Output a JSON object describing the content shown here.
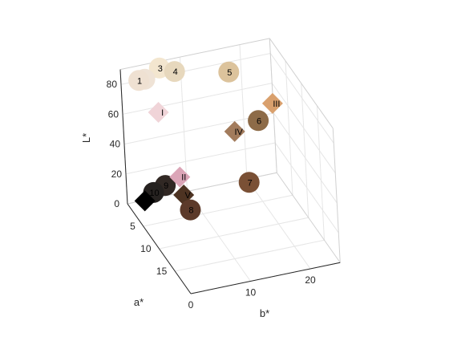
{
  "chart_data": {
    "type": "scatter3d",
    "title": "",
    "xlabel": "a*",
    "ylabel": "b*",
    "zlabel": "L*",
    "xlim": [
      0,
      20
    ],
    "ylim": [
      0,
      25
    ],
    "zlim": [
      0,
      90
    ],
    "xticks": [
      0,
      5,
      10,
      15
    ],
    "yticks": [
      0,
      10,
      20
    ],
    "zticks": [
      20,
      40,
      60,
      80
    ],
    "grid": true,
    "view": {
      "azimuth": -20,
      "elevation": 50
    },
    "points": [
      {
        "label": "1",
        "marker": "circle",
        "color": "#efe1d2",
        "a": 2,
        "b": 2,
        "L": 87
      },
      {
        "label": "2",
        "marker": "circle",
        "color": "#efe3d6",
        "a": 2,
        "b": 3,
        "L": 87
      },
      {
        "label": "3",
        "marker": "circle",
        "color": "#f3e6cf",
        "a": 1,
        "b": 6,
        "L": 89
      },
      {
        "label": "4",
        "marker": "circle",
        "color": "#e7d8bd",
        "a": 2,
        "b": 8,
        "L": 88
      },
      {
        "label": "5",
        "marker": "circle",
        "color": "#dcc39c",
        "a": 4,
        "b": 16,
        "L": 87
      },
      {
        "label": "6",
        "marker": "circle",
        "color": "#8d6b48",
        "a": 7,
        "b": 19,
        "L": 61
      },
      {
        "label": "7",
        "marker": "circle",
        "color": "#7a5035",
        "a": 11,
        "b": 15,
        "L": 35
      },
      {
        "label": "8",
        "marker": "circle",
        "color": "#5c3a2a",
        "a": 9,
        "b": 6,
        "L": 18
      },
      {
        "label": "9",
        "marker": "circle",
        "color": "#312824",
        "a": 5,
        "b": 4,
        "L": 24
      },
      {
        "label": "10",
        "marker": "circle",
        "color": "#262220",
        "a": 5,
        "b": 2,
        "L": 21
      },
      {
        "label": "I",
        "marker": "diamond",
        "color": "#f0d4d8",
        "a": 4,
        "b": 4,
        "L": 70
      },
      {
        "label": "II",
        "marker": "diamond",
        "color": "#dba5b7",
        "a": 6,
        "b": 6,
        "L": 31
      },
      {
        "label": "III",
        "marker": "diamond",
        "color": "#d9a06d",
        "a": 6,
        "b": 22,
        "L": 67
      },
      {
        "label": "IV",
        "marker": "diamond",
        "color": "#a27b5c",
        "a": 7,
        "b": 15,
        "L": 57
      },
      {
        "label": "V",
        "marker": "diamond",
        "color": "#4d3322",
        "a": 7,
        "b": 6,
        "L": 22
      },
      {
        "label": "VI",
        "marker": "diamond",
        "color": "#000000",
        "a": 6,
        "b": 0,
        "L": 20
      }
    ]
  }
}
